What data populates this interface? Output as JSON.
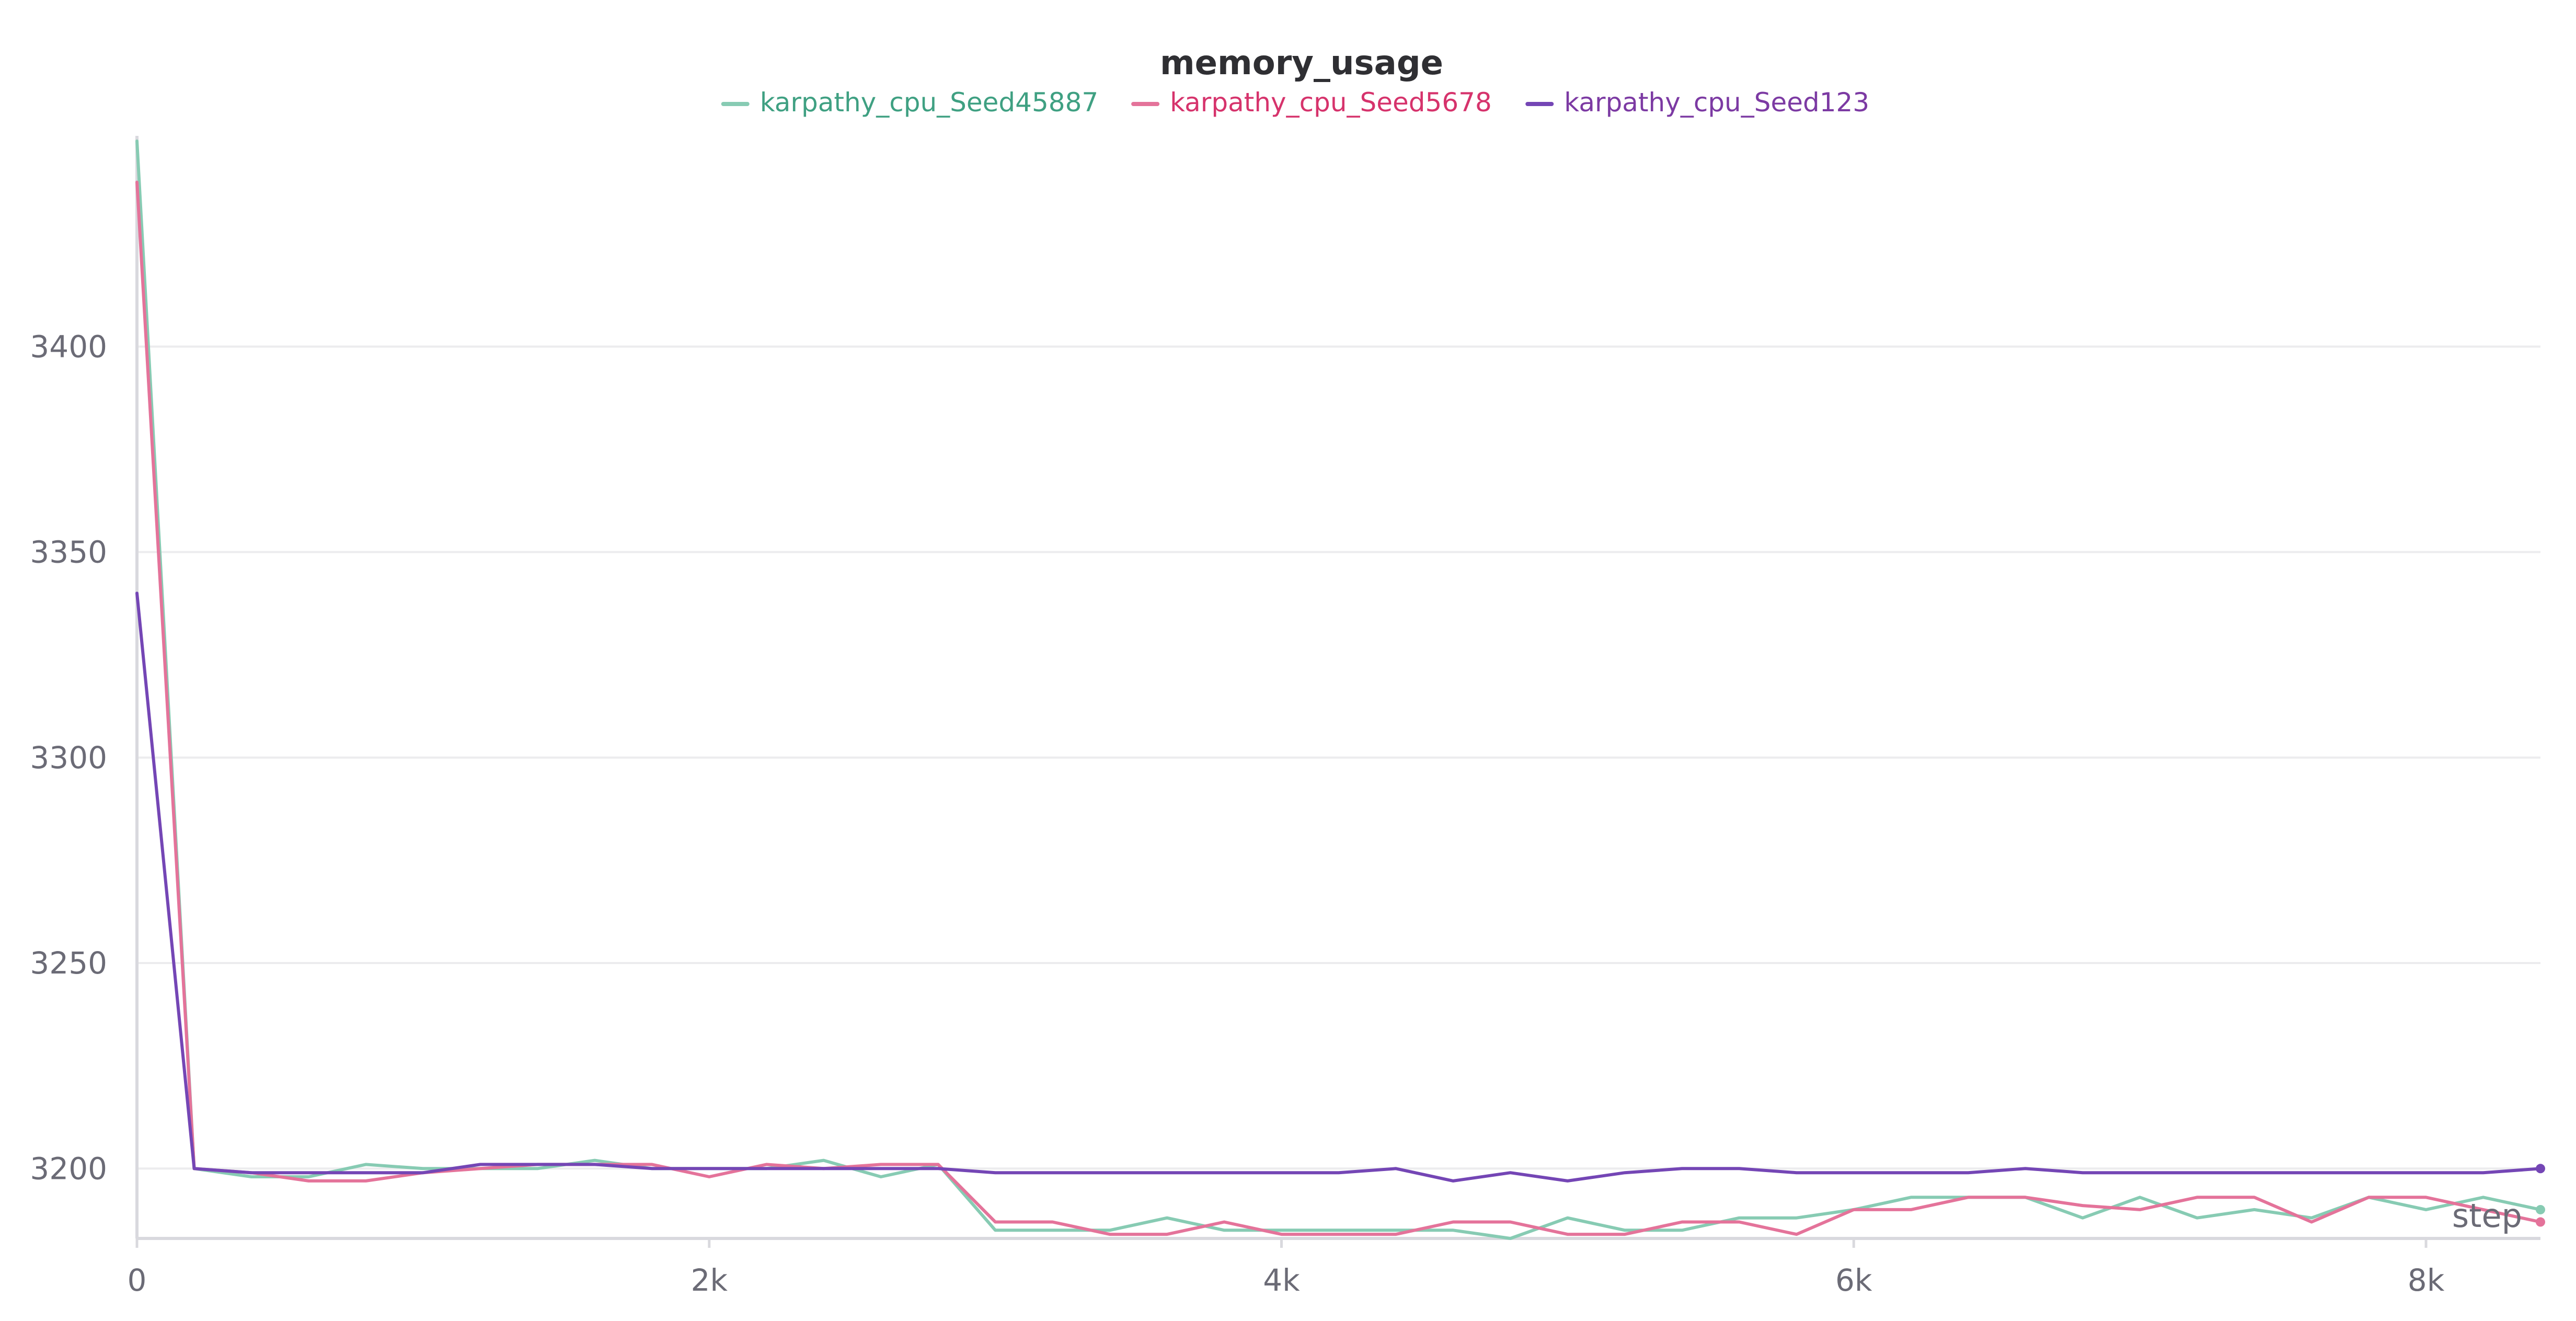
{
  "chart_data": {
    "type": "line",
    "title": "memory_usage",
    "xlabel": "step",
    "ylabel": "",
    "xlim": [
      0,
      8400
    ],
    "ylim": [
      3183,
      3450
    ],
    "x_ticks": [
      {
        "value": 0,
        "label": "0"
      },
      {
        "value": 2000,
        "label": "2k"
      },
      {
        "value": 4000,
        "label": "4k"
      },
      {
        "value": 6000,
        "label": "6k"
      },
      {
        "value": 8000,
        "label": "8k"
      }
    ],
    "y_ticks": [
      {
        "value": 3200,
        "label": "3200"
      },
      {
        "value": 3250,
        "label": "3250"
      },
      {
        "value": 3300,
        "label": "3300"
      },
      {
        "value": 3350,
        "label": "3350"
      },
      {
        "value": 3400,
        "label": "3400"
      }
    ],
    "grid": true,
    "legend_position": "top-center",
    "series": [
      {
        "name": "karpathy_cpu_Seed45887",
        "color": "#87cbb3",
        "text_color": "#3fa082",
        "x": [
          0,
          200,
          400,
          600,
          800,
          1000,
          1200,
          1400,
          1600,
          1800,
          2000,
          2200,
          2400,
          2600,
          2800,
          3000,
          3200,
          3400,
          3600,
          3800,
          4000,
          4200,
          4400,
          4600,
          4800,
          5000,
          5200,
          5400,
          5600,
          5800,
          6000,
          6200,
          6400,
          6600,
          6800,
          7000,
          7200,
          7400,
          7600,
          7800,
          8000,
          8200,
          8400
        ],
        "y": [
          3450,
          3200,
          3198,
          3198,
          3201,
          3200,
          3200,
          3200,
          3202,
          3200,
          3200,
          3200,
          3202,
          3198,
          3201,
          3185,
          3185,
          3185,
          3188,
          3185,
          3185,
          3185,
          3185,
          3185,
          3183,
          3188,
          3185,
          3185,
          3188,
          3188,
          3190,
          3193,
          3193,
          3193,
          3188,
          3193,
          3188,
          3190,
          3188,
          3193,
          3190,
          3193,
          3190
        ]
      },
      {
        "name": "karpathy_cpu_Seed5678",
        "color": "#e4739a",
        "text_color": "#d6336c",
        "x": [
          0,
          200,
          400,
          600,
          800,
          1000,
          1200,
          1400,
          1600,
          1800,
          2000,
          2200,
          2400,
          2600,
          2800,
          3000,
          3200,
          3400,
          3600,
          3800,
          4000,
          4200,
          4400,
          4600,
          4800,
          5000,
          5200,
          5400,
          5600,
          5800,
          6000,
          6200,
          6400,
          6600,
          6800,
          7000,
          7200,
          7400,
          7600,
          7800,
          8000,
          8200,
          8400
        ],
        "y": [
          3440,
          3200,
          3199,
          3197,
          3197,
          3199,
          3200,
          3201,
          3201,
          3201,
          3198,
          3201,
          3200,
          3201,
          3201,
          3187,
          3187,
          3184,
          3184,
          3187,
          3184,
          3184,
          3184,
          3187,
          3187,
          3184,
          3184,
          3187,
          3187,
          3184,
          3190,
          3190,
          3193,
          3193,
          3191,
          3190,
          3193,
          3193,
          3187,
          3193,
          3193,
          3190,
          3187
        ]
      },
      {
        "name": "karpathy_cpu_Seed123",
        "color": "#7446b5",
        "text_color": "#7c3aa3",
        "x": [
          0,
          200,
          400,
          600,
          800,
          1000,
          1200,
          1400,
          1600,
          1800,
          2000,
          2200,
          2400,
          2600,
          2800,
          3000,
          3200,
          3400,
          3600,
          3800,
          4000,
          4200,
          4400,
          4600,
          4800,
          5000,
          5200,
          5400,
          5600,
          5800,
          6000,
          6200,
          6400,
          6600,
          6800,
          7000,
          7200,
          7400,
          7600,
          7800,
          8000,
          8200,
          8400
        ],
        "y": [
          3340,
          3200,
          3199,
          3199,
          3199,
          3199,
          3201,
          3201,
          3201,
          3200,
          3200,
          3200,
          3200,
          3200,
          3200,
          3199,
          3199,
          3199,
          3199,
          3199,
          3199,
          3199,
          3200,
          3197,
          3199,
          3197,
          3199,
          3200,
          3200,
          3199,
          3199,
          3199,
          3199,
          3200,
          3199,
          3199,
          3199,
          3199,
          3199,
          3199,
          3199,
          3199,
          3200
        ]
      }
    ]
  }
}
